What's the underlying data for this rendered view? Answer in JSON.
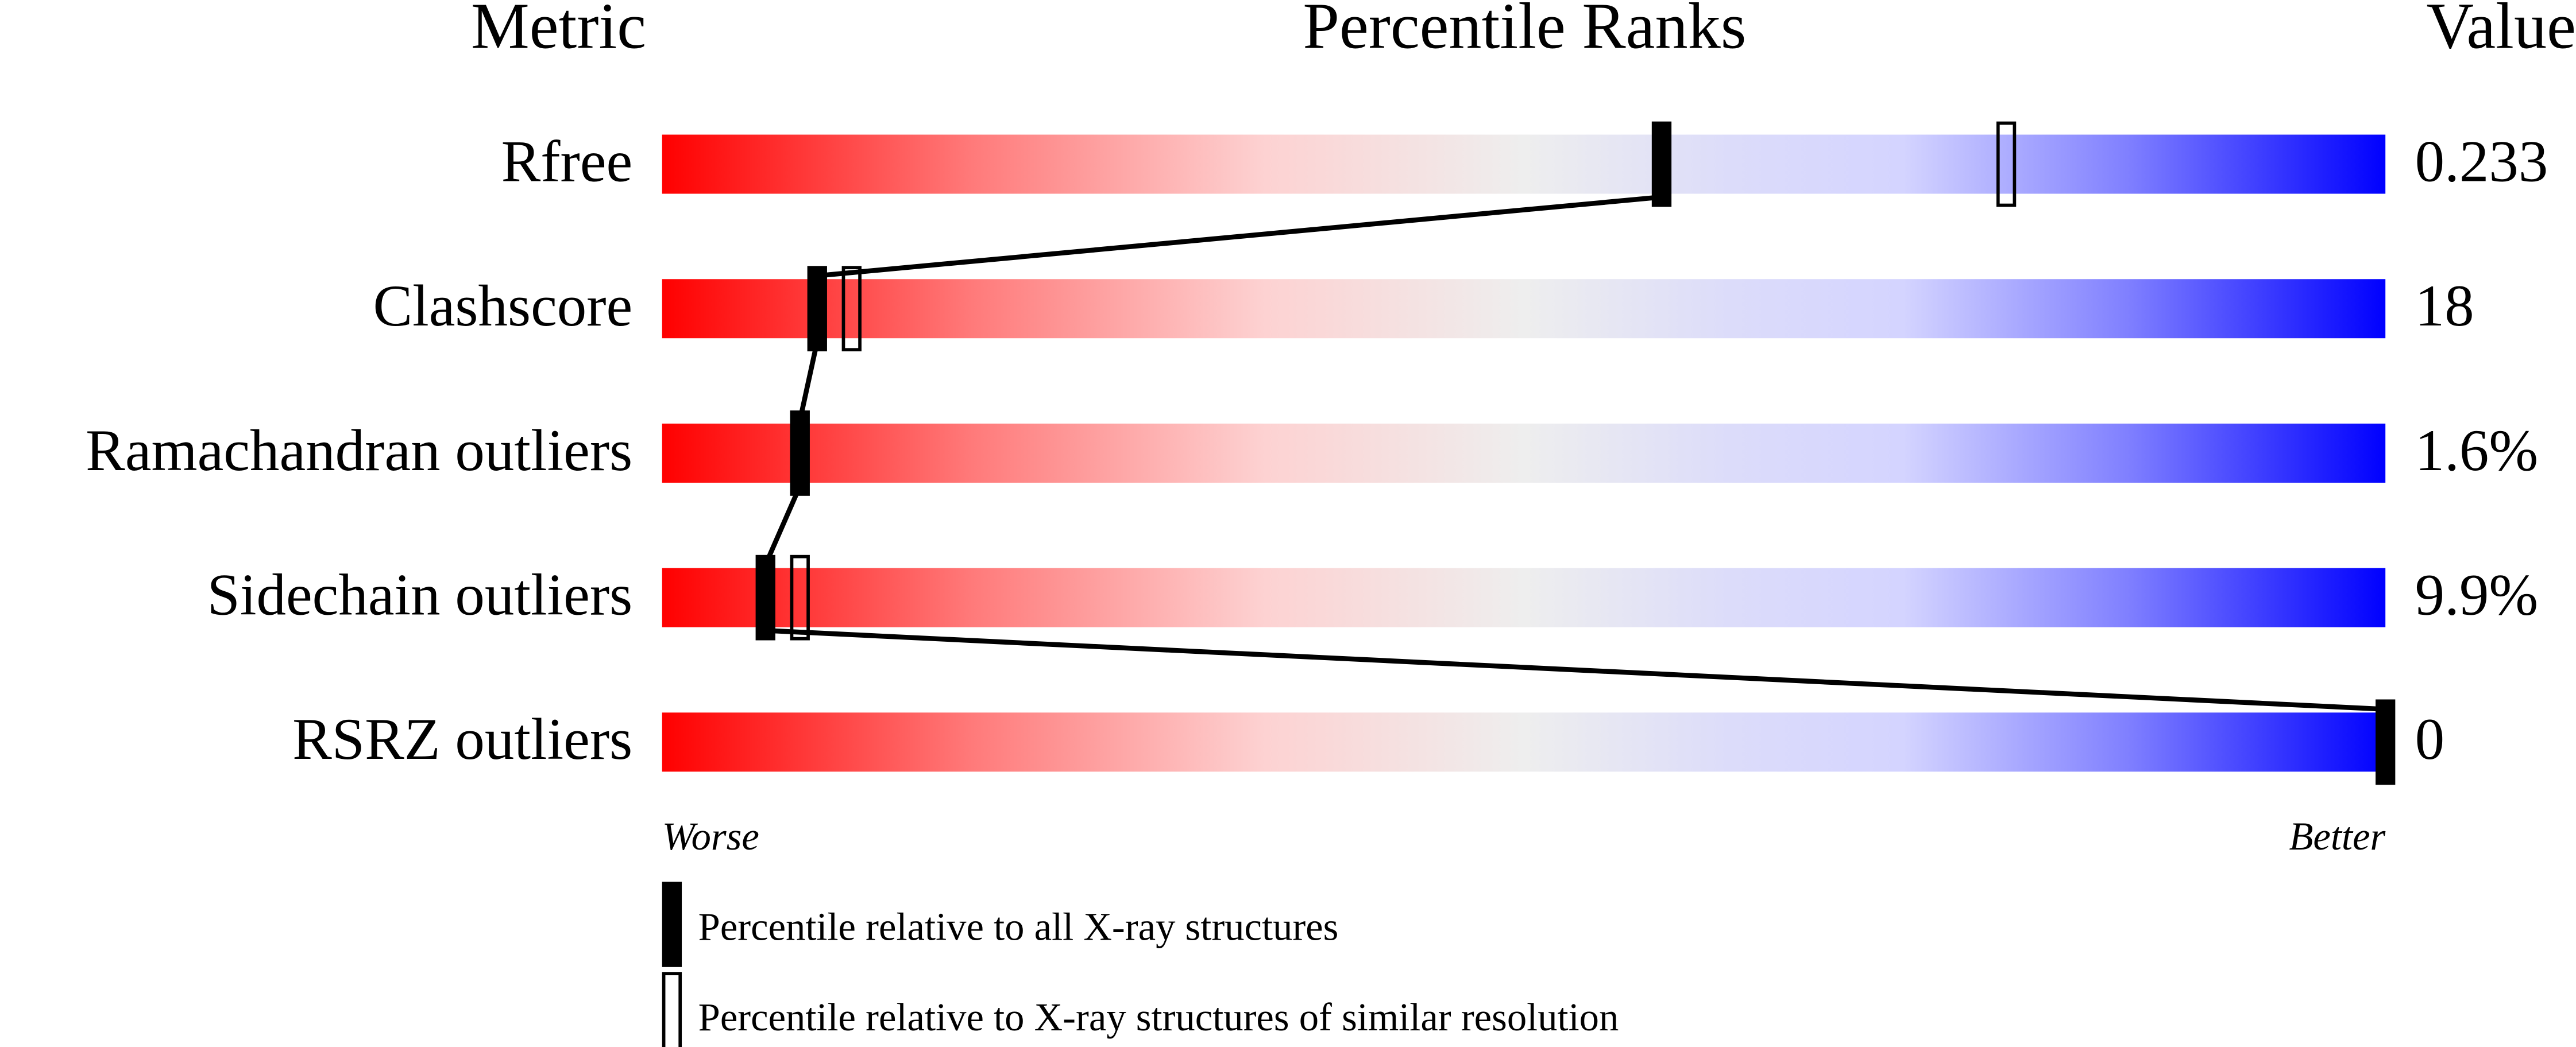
{
  "chart_data": {
    "type": "percentile",
    "title": "Percentile Ranks",
    "metric_header": "Metric",
    "value_header": "Value",
    "categories": [
      "Rfree",
      "Clashscore",
      "Ramachandran outliers",
      "Sidechain outliers",
      "RSRZ outliers"
    ],
    "metric_values": [
      "0.233",
      "18",
      "1.6%",
      "9.9%",
      "0"
    ],
    "xlim": [
      0,
      100
    ],
    "low_label": "Worse",
    "high_label": "Better",
    "series": [
      {
        "name": "Percentile relative to all X-ray structures",
        "color": "#000000",
        "style": "filled",
        "values": [
          58,
          9,
          8,
          6,
          100
        ]
      },
      {
        "name": "Percentile relative to X-ray structures of similar resolution",
        "color": "#000000",
        "style": "outline",
        "values": [
          78,
          11,
          null,
          8,
          null
        ]
      }
    ]
  }
}
